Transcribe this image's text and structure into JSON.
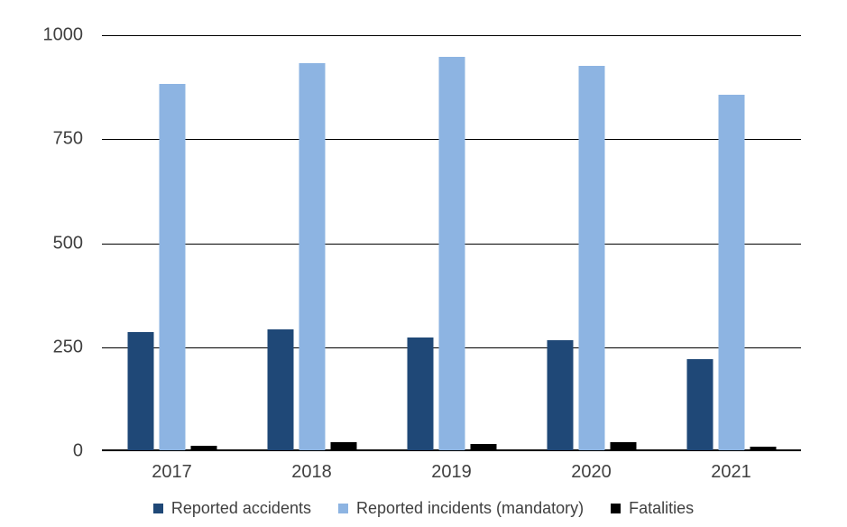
{
  "chart_data": {
    "type": "bar",
    "title": "",
    "categories": [
      "2017",
      "2018",
      "2019",
      "2020",
      "2021"
    ],
    "series": [
      {
        "name": "Reported accidents",
        "color": "#1F4877",
        "values": [
          285,
          290,
          272,
          265,
          220
        ]
      },
      {
        "name": "Reported incidents (mandatory)",
        "color": "#8DB4E2",
        "values": [
          880,
          930,
          945,
          925,
          855
        ]
      },
      {
        "name": "Fatalities",
        "color": "#000000",
        "values": [
          10,
          20,
          15,
          19,
          8
        ]
      }
    ],
    "xlabel": "",
    "ylabel": "",
    "ylim": [
      0,
      1000
    ],
    "yticks": [
      0,
      250,
      500,
      750,
      1000
    ],
    "grid": true,
    "legend_position": "bottom"
  },
  "colors": {
    "background": "#FFFFFF",
    "axis_text": "#404040",
    "gridline": "#000000",
    "axis_line": "#000000"
  }
}
